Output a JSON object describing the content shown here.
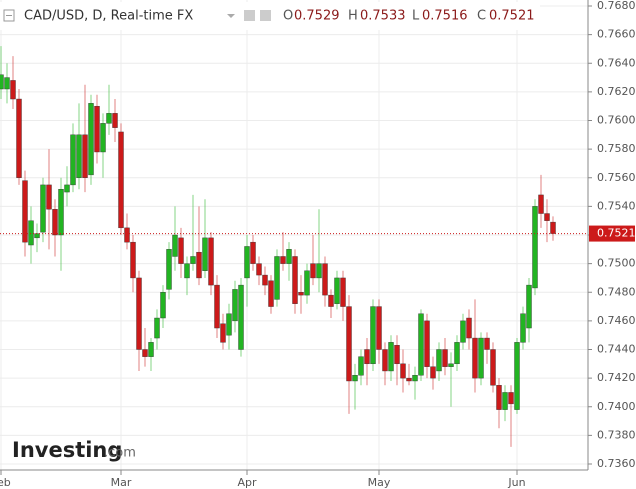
{
  "chart_data": {
    "type": "candlestick",
    "title": "CAD/USD, D, Real-time FX",
    "ohlc_labels": [
      "O",
      "H",
      "L",
      "C"
    ],
    "watermark": "Investing",
    "watermark_suffix": ".com",
    "up_color": "#22b422",
    "down_color": "#cc1a1a",
    "grid": true,
    "ylim": [
      0.736,
      0.768
    ],
    "yticks": [
      {
        "value": 0.736,
        "label": "0.7360"
      },
      {
        "value": 0.738,
        "label": "0.7380"
      },
      {
        "value": 0.74,
        "label": "0.7400"
      },
      {
        "value": 0.742,
        "label": "0.7420"
      },
      {
        "value": 0.744,
        "label": "0.7440"
      },
      {
        "value": 0.746,
        "label": "0.7460"
      },
      {
        "value": 0.748,
        "label": "0.7480"
      },
      {
        "value": 0.75,
        "label": "0.7500"
      },
      {
        "value": 0.752,
        "label": "0.7520"
      },
      {
        "value": 0.754,
        "label": "0.7540"
      },
      {
        "value": 0.756,
        "label": "0.7560"
      },
      {
        "value": 0.758,
        "label": "0.7580"
      },
      {
        "value": 0.76,
        "label": "0.7600"
      },
      {
        "value": 0.762,
        "label": "0.7620"
      },
      {
        "value": 0.764,
        "label": "0.7640"
      },
      {
        "value": 0.766,
        "label": "0.7660"
      },
      {
        "value": 0.768,
        "label": "0.7680"
      }
    ],
    "categories": [
      "Feb",
      null,
      null,
      null,
      null,
      null,
      null,
      null,
      null,
      null,
      null,
      null,
      null,
      null,
      null,
      null,
      null,
      null,
      null,
      null,
      "Mar",
      null,
      null,
      null,
      null,
      null,
      null,
      null,
      null,
      null,
      null,
      null,
      null,
      null,
      null,
      null,
      null,
      null,
      null,
      null,
      null,
      "Apr",
      null,
      null,
      null,
      null,
      null,
      null,
      null,
      null,
      null,
      null,
      null,
      null,
      null,
      null,
      null,
      null,
      null,
      null,
      null,
      null,
      null,
      "May",
      null,
      null,
      null,
      null,
      null,
      null,
      null,
      null,
      null,
      null,
      null,
      null,
      null,
      null,
      null,
      null,
      null,
      null,
      null,
      null,
      null,
      null,
      "Jun",
      null,
      null,
      null,
      null,
      null,
      null
    ],
    "open": [
      0.7622,
      0.7622,
      0.7628,
      0.7615,
      0.7558,
      0.7513,
      0.7518,
      0.7522,
      0.7555,
      0.7538,
      0.752,
      0.755,
      0.7555,
      0.756,
      0.759,
      0.7562,
      0.761,
      0.7578,
      0.7598,
      0.7605,
      0.7592,
      0.7525,
      0.7515,
      0.749,
      0.744,
      0.7435,
      0.7448,
      0.7462,
      0.7482,
      0.7505,
      0.7518,
      0.749,
      0.75,
      0.7508,
      0.7495,
      0.7518,
      0.7485,
      0.7458,
      0.745,
      0.746,
      0.744,
      0.749,
      0.7515,
      0.75,
      0.7492,
      0.7488,
      0.7475,
      0.7505,
      0.75,
      0.7505,
      0.748,
      0.7478,
      0.75,
      0.749,
      0.75,
      0.7478,
      0.7472,
      0.749,
      0.747,
      0.7418,
      0.7422,
      0.744,
      0.743,
      0.747,
      0.744,
      0.7425,
      0.7443,
      0.743,
      0.742,
      0.7418,
      0.7422,
      0.746,
      0.7428,
      0.7425,
      0.744,
      0.7428,
      0.743,
      0.7445,
      0.7462,
      0.7448,
      0.742,
      0.7448,
      0.744,
      0.7415,
      0.7398,
      0.741,
      0.7398,
      0.7445,
      0.7455,
      0.7483,
      0.7548,
      0.7535,
      0.7529
    ],
    "high": [
      0.7652,
      0.764,
      0.7645,
      0.7622,
      0.7565,
      0.754,
      0.7528,
      0.756,
      0.758,
      0.7545,
      0.756,
      0.7568,
      0.7598,
      0.7612,
      0.7625,
      0.7618,
      0.7618,
      0.7605,
      0.7625,
      0.7615,
      0.7598,
      0.7535,
      0.752,
      0.7495,
      0.7455,
      0.7448,
      0.7468,
      0.7485,
      0.7515,
      0.754,
      0.7525,
      0.7505,
      0.7548,
      0.754,
      0.7545,
      0.7522,
      0.7492,
      0.7465,
      0.7472,
      0.7488,
      0.749,
      0.752,
      0.752,
      0.7505,
      0.7498,
      0.7492,
      0.751,
      0.7522,
      0.7515,
      0.751,
      0.7492,
      0.75,
      0.752,
      0.7538,
      0.7505,
      0.7482,
      0.7495,
      0.7495,
      0.7478,
      0.743,
      0.744,
      0.7448,
      0.7475,
      0.7475,
      0.7445,
      0.745,
      0.745,
      0.744,
      0.743,
      0.7428,
      0.7468,
      0.7465,
      0.7435,
      0.7445,
      0.7448,
      0.7438,
      0.745,
      0.7465,
      0.7468,
      0.7475,
      0.7452,
      0.7452,
      0.7445,
      0.742,
      0.7415,
      0.7415,
      0.7448,
      0.747,
      0.749,
      0.7545,
      0.7562,
      0.7545,
      0.7533
    ],
    "low": [
      0.7615,
      0.7612,
      0.7608,
      0.7555,
      0.7505,
      0.75,
      0.7508,
      0.7515,
      0.751,
      0.7505,
      0.7495,
      0.754,
      0.755,
      0.7552,
      0.755,
      0.7555,
      0.757,
      0.756,
      0.759,
      0.7585,
      0.752,
      0.751,
      0.748,
      0.7425,
      0.7428,
      0.7425,
      0.744,
      0.7455,
      0.7475,
      0.7495,
      0.749,
      0.7478,
      0.7495,
      0.7485,
      0.749,
      0.7478,
      0.7448,
      0.744,
      0.744,
      0.7452,
      0.7435,
      0.747,
      0.7495,
      0.7485,
      0.7478,
      0.7465,
      0.747,
      0.7495,
      0.7488,
      0.7465,
      0.7465,
      0.7472,
      0.7485,
      0.748,
      0.747,
      0.7462,
      0.7468,
      0.746,
      0.7395,
      0.7398,
      0.7415,
      0.7415,
      0.7425,
      0.743,
      0.7415,
      0.7418,
      0.7415,
      0.741,
      0.7415,
      0.7405,
      0.7418,
      0.742,
      0.7412,
      0.7418,
      0.7422,
      0.74,
      0.7425,
      0.744,
      0.744,
      0.741,
      0.7415,
      0.743,
      0.741,
      0.7385,
      0.739,
      0.7372,
      0.7395,
      0.744,
      0.7445,
      0.7478,
      0.7525,
      0.7515,
      0.7516
    ],
    "close": [
      0.7632,
      0.763,
      0.7615,
      0.756,
      0.7515,
      0.753,
      0.7521,
      0.7555,
      0.7538,
      0.752,
      0.7552,
      0.7555,
      0.759,
      0.759,
      0.756,
      0.7612,
      0.7578,
      0.7598,
      0.7605,
      0.7595,
      0.7525,
      0.7515,
      0.749,
      0.744,
      0.7435,
      0.7445,
      0.7462,
      0.748,
      0.751,
      0.752,
      0.75,
      0.75,
      0.7505,
      0.749,
      0.7518,
      0.7485,
      0.7455,
      0.7445,
      0.7465,
      0.7482,
      0.7485,
      0.7512,
      0.75,
      0.7492,
      0.7485,
      0.747,
      0.7505,
      0.75,
      0.751,
      0.7472,
      0.7478,
      0.7495,
      0.749,
      0.75,
      0.7478,
      0.747,
      0.749,
      0.747,
      0.7418,
      0.7422,
      0.7435,
      0.743,
      0.747,
      0.744,
      0.7425,
      0.7445,
      0.743,
      0.742,
      0.7418,
      0.7422,
      0.7465,
      0.7428,
      0.742,
      0.744,
      0.7428,
      0.743,
      0.7445,
      0.746,
      0.7448,
      0.742,
      0.7448,
      0.744,
      0.7415,
      0.7398,
      0.741,
      0.7402,
      0.7445,
      0.7465,
      0.7485,
      0.754,
      0.7535,
      0.753,
      0.7521
    ]
  }
}
